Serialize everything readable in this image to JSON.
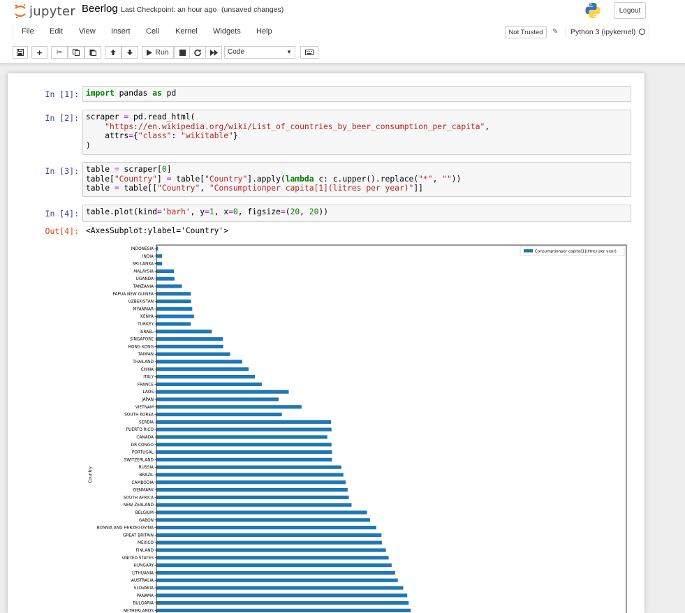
{
  "header": {
    "logo_text": "jupyter",
    "notebook_name": "Beerlog",
    "checkpoint": "Last Checkpoint: an hour ago",
    "unsaved": "(unsaved changes)",
    "logout_label": "Logout"
  },
  "menu": {
    "items": [
      "File",
      "Edit",
      "View",
      "Insert",
      "Cell",
      "Kernel",
      "Widgets",
      "Help"
    ],
    "trust_label": "Not Trusted",
    "kernel_name": "Python 3 (ipykernel)"
  },
  "toolbar": {
    "run_label": "Run",
    "cell_type": "Code"
  },
  "cells": [
    {
      "prompt": "In [1]:",
      "lines": [
        [
          [
            "kw",
            "import"
          ],
          [
            "t",
            " pandas "
          ],
          [
            "kw",
            "as"
          ],
          [
            "t",
            " pd"
          ]
        ]
      ]
    },
    {
      "prompt": "In [2]:",
      "lines": [
        [
          [
            "t",
            "scraper "
          ],
          [
            "op",
            "="
          ],
          [
            "t",
            " pd.read_html("
          ]
        ],
        [
          [
            "t",
            "    "
          ],
          [
            "st",
            "\"https://en.wikipedia.org/wiki/List_of_countries_by_beer_consumption_per_capita\""
          ],
          [
            "t",
            ","
          ]
        ],
        [
          [
            "t",
            "    attrs"
          ],
          [
            "op",
            "="
          ],
          [
            "t",
            "{"
          ],
          [
            "st",
            "\"class\""
          ],
          [
            "t",
            ": "
          ],
          [
            "st",
            "\"wikitable\""
          ],
          [
            "t",
            "}"
          ]
        ],
        [
          [
            "t",
            ")"
          ]
        ]
      ]
    },
    {
      "prompt": "In [3]:",
      "lines": [
        [
          [
            "t",
            "table "
          ],
          [
            "op",
            "="
          ],
          [
            "t",
            " scraper["
          ],
          [
            "nm",
            "0"
          ],
          [
            "t",
            "]"
          ]
        ],
        [
          [
            "t",
            "table["
          ],
          [
            "st",
            "\"Country\""
          ],
          [
            "t",
            "] "
          ],
          [
            "op",
            "="
          ],
          [
            "t",
            " table["
          ],
          [
            "st",
            "\"Country\""
          ],
          [
            "t",
            "].apply("
          ],
          [
            "kw",
            "lambda"
          ],
          [
            "t",
            " c: c.upper().replace("
          ],
          [
            "st",
            "\"*\""
          ],
          [
            "t",
            ", "
          ],
          [
            "st",
            "\"\""
          ],
          [
            "t",
            "))"
          ]
        ],
        [
          [
            "t",
            "table "
          ],
          [
            "op",
            "="
          ],
          [
            "t",
            " table[["
          ],
          [
            "st",
            "\"Country\""
          ],
          [
            "t",
            ", "
          ],
          [
            "st",
            "\"Consumptionper capita[1](litres per year)\""
          ],
          [
            "t",
            "]]"
          ]
        ]
      ]
    },
    {
      "prompt": "In [4]:",
      "lines": [
        [
          [
            "t",
            "table.plot(kind"
          ],
          [
            "op",
            "="
          ],
          [
            "st",
            "'barh'"
          ],
          [
            "t",
            ", y"
          ],
          [
            "op",
            "="
          ],
          [
            "nm",
            "1"
          ],
          [
            "t",
            ", x"
          ],
          [
            "op",
            "="
          ],
          [
            "nm",
            "0"
          ],
          [
            "t",
            ", figsize"
          ],
          [
            "op",
            "="
          ],
          [
            "t",
            "("
          ],
          [
            "nm",
            "20"
          ],
          [
            "t",
            ", "
          ],
          [
            "nm",
            "20"
          ],
          [
            "t",
            "))"
          ]
        ]
      ]
    }
  ],
  "output": {
    "prompt": "Out[4]:",
    "text": "<AxesSubplot:ylabel='Country'>"
  },
  "chart_data": {
    "type": "bar",
    "orientation": "horizontal",
    "ylabel": "Country",
    "legend": "Consumptionper capita[1](litres per year)",
    "legend_position": "top-right",
    "bar_color": "#1f77b4",
    "xlim": [
      0,
      190
    ],
    "categories": [
      "INDONESIA",
      "INDIA",
      "SRI LANKA",
      "MALAYSIA",
      "UGANDA",
      "TANZANIA",
      "PAPUA NEW GUINEA",
      "UZBEKISTAN",
      "MYANMAR",
      "KENYA",
      "TURKEY",
      "ISRAEL",
      "SINGAPORE",
      "HONG KONG",
      "TAIWAN",
      "THAILAND",
      "CHINA",
      "ITALY",
      "FRANCE",
      "LAOS",
      "JAPAN",
      "VIETNAM",
      "SOUTH KOREA",
      "SERBIA",
      "PUERTO RICO",
      "CANADA",
      "DR CONGO",
      "PORTUGAL",
      "SWITZERLAND",
      "RUSSIA",
      "BRAZIL",
      "CAMBODIA",
      "DENMARK",
      "SOUTH AFRICA",
      "NEW ZEALAND",
      "BELGIUM",
      "GABON",
      "BOSNIA AND HERZEGOVINA",
      "GREAT BRITAIN",
      "MEXICO",
      "FINLAND",
      "UNITED STATES",
      "HUNGARY",
      "LITHUANIA",
      "AUSTRALIA",
      "SLOVAKIA",
      "PANAMA",
      "BULGARIA",
      "NETHERLANDS"
    ],
    "values": [
      0.7,
      2.3,
      2.3,
      7.1,
      7.3,
      10.3,
      13.9,
      14.0,
      14.5,
      15.2,
      13.9,
      22.4,
      26.9,
      27.0,
      29.8,
      34.7,
      37.3,
      39.8,
      42.6,
      53.5,
      49.4,
      58.7,
      50.7,
      70.6,
      70.8,
      69.1,
      70.8,
      71.0,
      71.0,
      74.8,
      75.6,
      76.5,
      77.3,
      77.8,
      78.9,
      85.1,
      86.4,
      88.9,
      91.0,
      91.2,
      92.8,
      93.9,
      95.1,
      96.5,
      97.6,
      99.8,
      101.4,
      102.0,
      102.8
    ]
  }
}
